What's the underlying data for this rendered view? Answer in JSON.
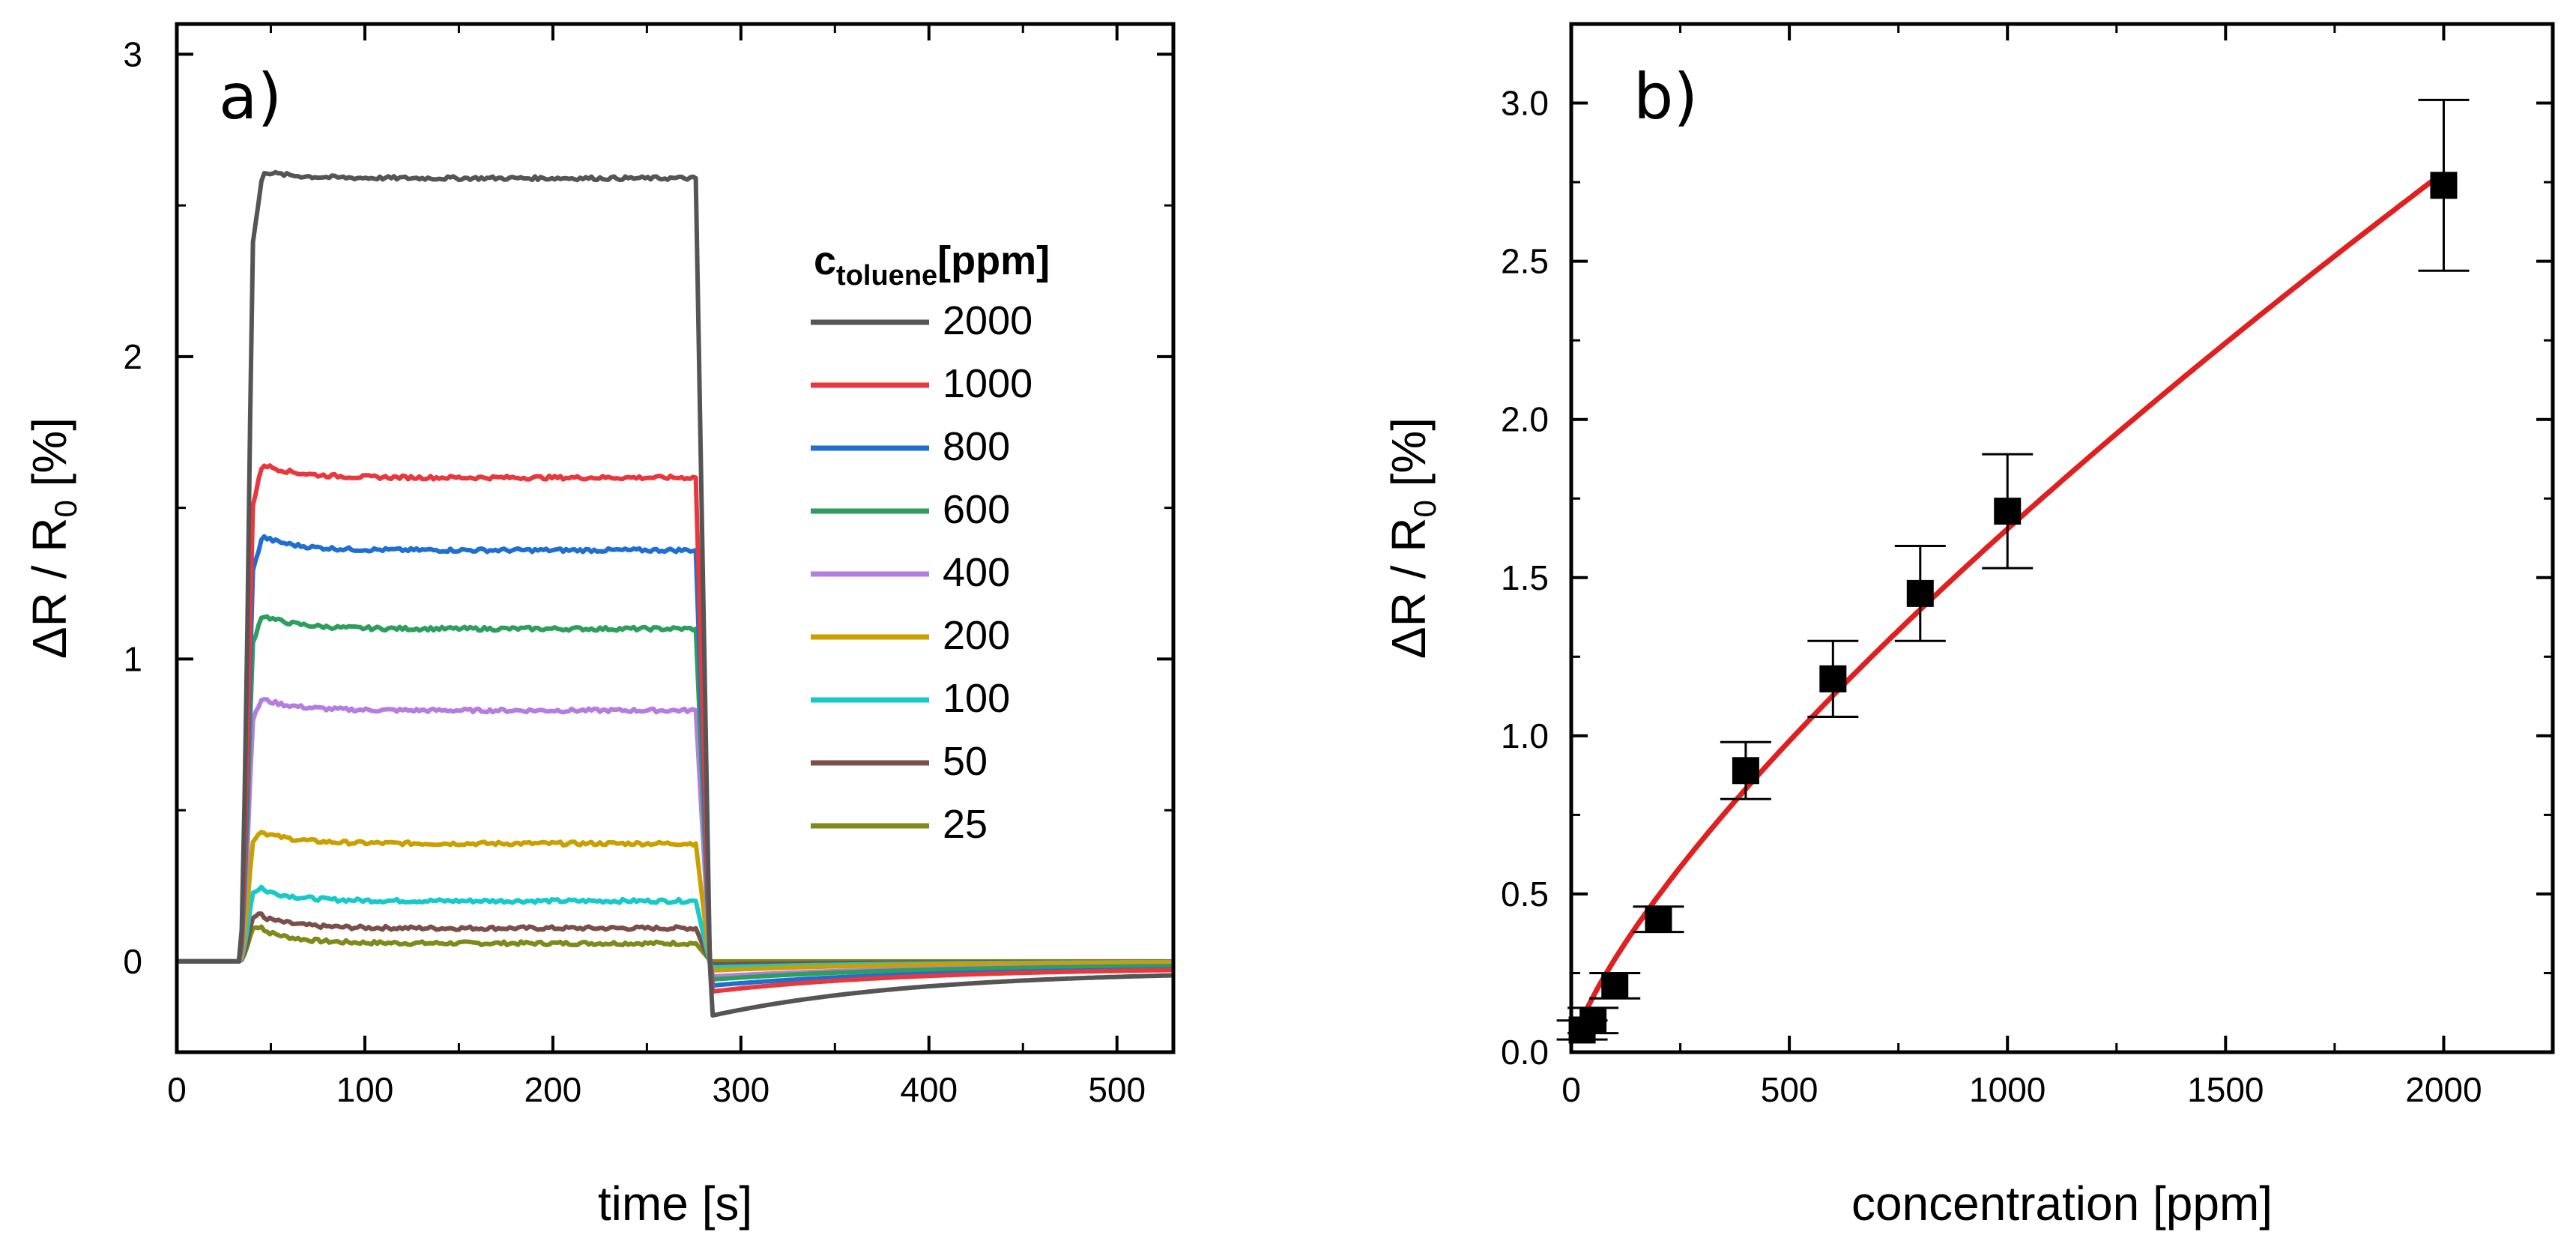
{
  "chart_data": [
    {
      "panel": "a)",
      "type": "line",
      "xlabel": "time [s]",
      "ylabel": "ΔR / R",
      "ylabel_sub": "0",
      "ylabel_suffix": " [%]",
      "xlim": [
        0,
        530
      ],
      "ylim": [
        -0.3,
        3.1
      ],
      "xticks": [
        0,
        100,
        200,
        300,
        400,
        500
      ],
      "yticks": [
        0,
        1,
        2,
        3
      ],
      "xtick_labels": [
        "0",
        "100",
        "200",
        "300",
        "400",
        "500"
      ],
      "ytick_labels": [
        "0",
        "1",
        "2",
        "3"
      ],
      "legend": {
        "title_main": "c",
        "title_sub": "toluene",
        "title_suffix": "[ppm]",
        "position": "right"
      },
      "exposure": {
        "on": 36,
        "off": 276
      },
      "series": [
        {
          "name": "2000",
          "color": "#555555",
          "peak": 2.62,
          "plateau": 2.59,
          "undershoot": -0.18,
          "recovery_end": -0.03
        },
        {
          "name": "1000",
          "color": "#e8383d",
          "peak": 1.66,
          "plateau": 1.6,
          "undershoot": -0.1,
          "recovery_end": -0.02
        },
        {
          "name": "800",
          "color": "#1f6fd1",
          "peak": 1.42,
          "plateau": 1.36,
          "undershoot": -0.08,
          "recovery_end": -0.02
        },
        {
          "name": "600",
          "color": "#2e9e5e",
          "peak": 1.16,
          "plateau": 1.1,
          "undershoot": -0.06,
          "recovery_end": -0.01
        },
        {
          "name": "400",
          "color": "#b57de0",
          "peak": 0.88,
          "plateau": 0.83,
          "undershoot": -0.05,
          "recovery_end": -0.01
        },
        {
          "name": "200",
          "color": "#c9a000",
          "peak": 0.44,
          "plateau": 0.39,
          "undershoot": -0.03,
          "recovery_end": 0.0
        },
        {
          "name": "100",
          "color": "#17c9c9",
          "peak": 0.25,
          "plateau": 0.2,
          "undershoot": -0.02,
          "recovery_end": 0.0
        },
        {
          "name": "50",
          "color": "#7a4f4a",
          "peak": 0.16,
          "plateau": 0.11,
          "undershoot": -0.01,
          "recovery_end": 0.0
        },
        {
          "name": "25",
          "color": "#7f8a1a",
          "peak": 0.12,
          "plateau": 0.06,
          "undershoot": 0.0,
          "recovery_end": 0.0
        }
      ]
    },
    {
      "panel": "b)",
      "type": "scatter",
      "xlabel": "concentration [ppm]",
      "ylabel": "ΔR / R",
      "ylabel_sub": "0",
      "ylabel_suffix": " [%]",
      "xlim": [
        0,
        2250
      ],
      "ylim": [
        0,
        3.25
      ],
      "xticks": [
        0,
        500,
        1000,
        1500,
        2000
      ],
      "yticks": [
        0.0,
        0.5,
        1.0,
        1.5,
        2.0,
        2.5,
        3.0
      ],
      "xtick_labels": [
        "0",
        "500",
        "1000",
        "1500",
        "2000"
      ],
      "ytick_labels": [
        "0.0",
        "0.5",
        "1.0",
        "1.5",
        "2.0",
        "2.5",
        "3.0"
      ],
      "points": [
        {
          "x": 25,
          "y": 0.07,
          "err": 0.03
        },
        {
          "x": 50,
          "y": 0.1,
          "err": 0.04
        },
        {
          "x": 100,
          "y": 0.21,
          "err": 0.04
        },
        {
          "x": 200,
          "y": 0.42,
          "err": 0.04
        },
        {
          "x": 400,
          "y": 0.89,
          "err": 0.09
        },
        {
          "x": 600,
          "y": 1.18,
          "err": 0.12
        },
        {
          "x": 800,
          "y": 1.45,
          "err": 0.15
        },
        {
          "x": 1000,
          "y": 1.71,
          "err": 0.18
        },
        {
          "x": 2000,
          "y": 2.74,
          "err": 0.27
        }
      ],
      "fit": {
        "type": "power",
        "a": 0.0093,
        "b": 0.75,
        "x_range": [
          25,
          2000
        ],
        "color": "#e02020"
      }
    }
  ]
}
